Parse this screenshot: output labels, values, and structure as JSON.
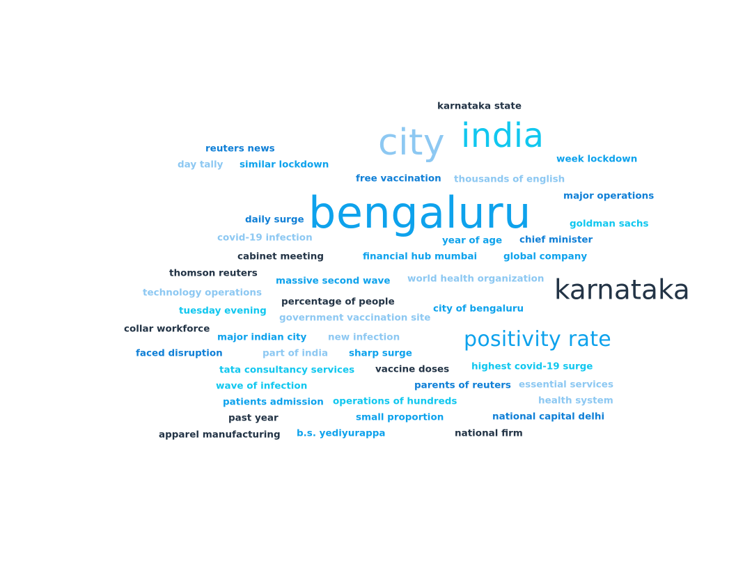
{
  "colors": {
    "dark": "#233446",
    "blue": "#0f7fd6",
    "azure": "#0ea2ec",
    "cyan": "#11c7ef",
    "light": "#8dc8f2"
  },
  "words": [
    {
      "text": "karnataka state",
      "color": "dark"
    },
    {
      "text": "city",
      "color": "light"
    },
    {
      "text": "india",
      "color": "cyan"
    },
    {
      "text": "reuters news",
      "color": "blue"
    },
    {
      "text": "week lockdown",
      "color": "azure"
    },
    {
      "text": "day tally",
      "color": "light"
    },
    {
      "text": "similar lockdown",
      "color": "azure"
    },
    {
      "text": "free vaccination",
      "color": "blue"
    },
    {
      "text": "thousands of english",
      "color": "light"
    },
    {
      "text": "major operations",
      "color": "blue"
    },
    {
      "text": "bengaluru",
      "color": "azure"
    },
    {
      "text": "daily surge",
      "color": "blue"
    },
    {
      "text": "goldman sachs",
      "color": "cyan"
    },
    {
      "text": "covid-19 infection",
      "color": "light"
    },
    {
      "text": "year of age",
      "color": "azure"
    },
    {
      "text": "chief minister",
      "color": "blue"
    },
    {
      "text": "cabinet meeting",
      "color": "dark"
    },
    {
      "text": "financial hub mumbai",
      "color": "azure"
    },
    {
      "text": "global company",
      "color": "azure"
    },
    {
      "text": "thomson reuters",
      "color": "dark"
    },
    {
      "text": "world health organization",
      "color": "light"
    },
    {
      "text": "massive second wave",
      "color": "azure"
    },
    {
      "text": "karnataka",
      "color": "dark"
    },
    {
      "text": "technology operations",
      "color": "light"
    },
    {
      "text": "percentage of people",
      "color": "dark"
    },
    {
      "text": "tuesday evening",
      "color": "cyan"
    },
    {
      "text": "city of bengaluru",
      "color": "azure"
    },
    {
      "text": "government vaccination site",
      "color": "light"
    },
    {
      "text": "collar workforce",
      "color": "dark"
    },
    {
      "text": "major indian city",
      "color": "azure"
    },
    {
      "text": "new infection",
      "color": "light"
    },
    {
      "text": "positivity rate",
      "color": "azure"
    },
    {
      "text": "faced disruption",
      "color": "blue"
    },
    {
      "text": "part of india",
      "color": "light"
    },
    {
      "text": "sharp surge",
      "color": "azure"
    },
    {
      "text": "tata consultancy services",
      "color": "cyan"
    },
    {
      "text": "vaccine doses",
      "color": "dark"
    },
    {
      "text": "highest covid-19 surge",
      "color": "cyan"
    },
    {
      "text": "wave of infection",
      "color": "cyan"
    },
    {
      "text": "parents of reuters",
      "color": "blue"
    },
    {
      "text": "essential services",
      "color": "light"
    },
    {
      "text": "patients admission",
      "color": "azure"
    },
    {
      "text": "operations of hundreds",
      "color": "cyan"
    },
    {
      "text": "health system",
      "color": "light"
    },
    {
      "text": "past year",
      "color": "dark"
    },
    {
      "text": "small proportion",
      "color": "azure"
    },
    {
      "text": "national capital delhi",
      "color": "blue"
    },
    {
      "text": "apparel manufacturing",
      "color": "dark"
    },
    {
      "text": "b.s. yediyurappa",
      "color": "azure"
    },
    {
      "text": "national firm",
      "color": "dark"
    }
  ]
}
